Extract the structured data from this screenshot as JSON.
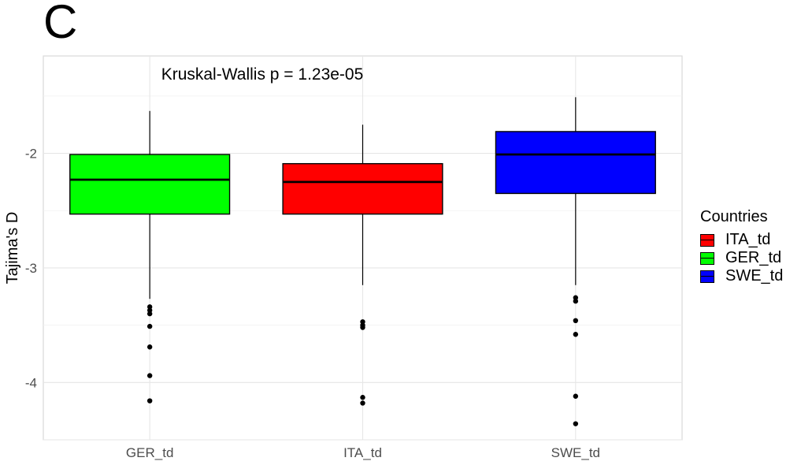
{
  "panel_label": "C",
  "chart_data": {
    "type": "box",
    "annotation": "Kruskal-Wallis p = 1.23e-05",
    "xlabel": "",
    "ylabel": "Tajima's D",
    "ylim": [
      -4.5,
      -1.15
    ],
    "yticks": [
      -4,
      -3,
      -2
    ],
    "ytick_labels": [
      "-4",
      "-3",
      "-2"
    ],
    "grid": true,
    "categories": [
      "GER_td",
      "ITA_td",
      "SWE_td"
    ],
    "boxes": [
      {
        "category": "GER_td",
        "color": "#00ff00",
        "whisker_low": -3.27,
        "q1": -2.53,
        "median": -2.23,
        "q3": -2.01,
        "whisker_high": -1.63,
        "outliers": [
          -3.34,
          -3.37,
          -3.4,
          -3.51,
          -3.69,
          -3.94,
          -4.16
        ]
      },
      {
        "category": "ITA_td",
        "color": "#ff0000",
        "whisker_low": -3.15,
        "q1": -2.53,
        "median": -2.25,
        "q3": -2.09,
        "whisker_high": -1.75,
        "outliers": [
          -3.47,
          -3.5,
          -3.52,
          -4.13,
          -4.18
        ]
      },
      {
        "category": "SWE_td",
        "color": "#0000ff",
        "whisker_low": -3.15,
        "q1": -2.35,
        "median": -2.01,
        "q3": -1.81,
        "whisker_high": -1.51,
        "outliers": [
          -3.26,
          -3.29,
          -3.46,
          -3.58,
          -4.12,
          -4.36
        ]
      }
    ],
    "legend": {
      "title": "Countries",
      "position": "right",
      "items": [
        {
          "label": "ITA_td",
          "color": "#ff0000"
        },
        {
          "label": "GER_td",
          "color": "#00ff00"
        },
        {
          "label": "SWE_td",
          "color": "#0000ff"
        }
      ]
    }
  }
}
